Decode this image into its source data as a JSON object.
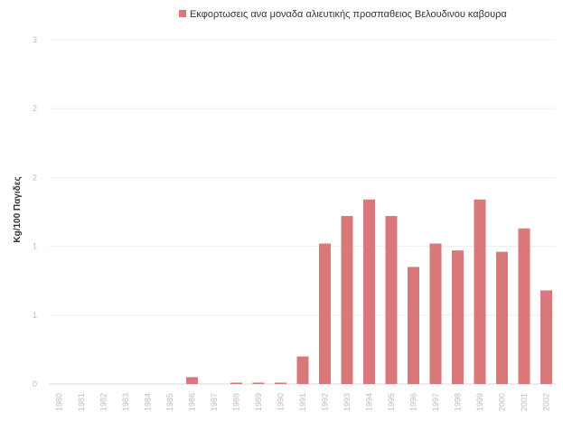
{
  "chart_data": {
    "type": "bar",
    "series_name": "Εκφορτωσεις ανα μοναδα αλιευτικής προσπαθειος Βελουδινου καβουρα",
    "color": "#d9787a",
    "ylabel": "Kg/100 Παγιδες",
    "ylim": [
      0,
      3
    ],
    "yticks": [
      "0",
      "1",
      "1",
      "2",
      "2",
      "3"
    ],
    "ytick_values": [
      0,
      0.5,
      1,
      1.5,
      2,
      2.5
    ],
    "categories": [
      "1980",
      "1981",
      "1982",
      "1983",
      "1984",
      "1985",
      "1986",
      "1987",
      "1988",
      "1989",
      "1990",
      "1991",
      "1992",
      "1993",
      "1994",
      "1995",
      "1996",
      "1997",
      "1998",
      "1999",
      "2000",
      "2001",
      "2002"
    ],
    "values": [
      0,
      0,
      0,
      0,
      0,
      0,
      0.05,
      0,
      0.01,
      0.01,
      0.01,
      0.2,
      1.02,
      1.22,
      1.34,
      1.22,
      0.85,
      1.02,
      0.97,
      1.34,
      0.96,
      1.13,
      0.68
    ],
    "legend_position": "top",
    "grid": true
  }
}
